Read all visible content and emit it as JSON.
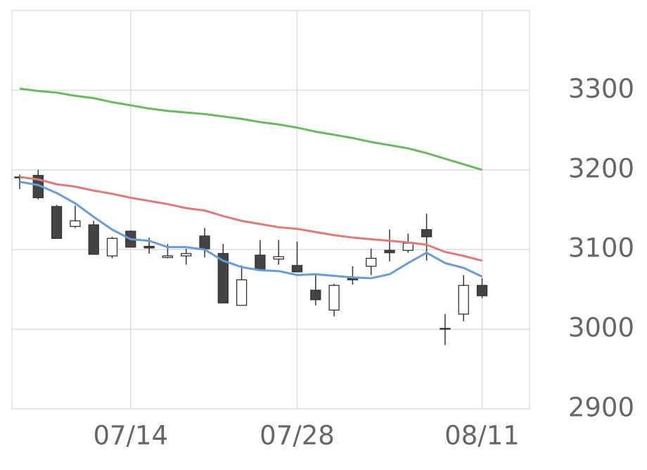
{
  "chart_data": {
    "type": "candlestick",
    "categories": [
      null,
      null,
      null,
      null,
      null,
      null,
      "07/14",
      null,
      null,
      null,
      null,
      null,
      null,
      null,
      null,
      "07/28",
      null,
      null,
      null,
      null,
      null,
      null,
      null,
      null,
      null,
      "08/11"
    ],
    "open": [
      3190,
      3193,
      3154,
      3129,
      3131,
      3092,
      3123,
      3104,
      3090,
      3092,
      3117,
      3095,
      3030,
      3093,
      3088,
      3080,
      3049,
      3024,
      3064,
      3079,
      3099,
      3099,
      3125,
      3000,
      3019,
      3055
    ],
    "high": [
      3194,
      3200,
      3156,
      3155,
      3136,
      3116,
      3124,
      3115,
      3107,
      3101,
      3127,
      3107,
      3080,
      3112,
      3112,
      3110,
      3070,
      3057,
      3079,
      3101,
      3125,
      3120,
      3145,
      3019,
      3068,
      3064
    ],
    "low": [
      3176,
      3163,
      3114,
      3127,
      3094,
      3089,
      3103,
      3095,
      3089,
      3081,
      3090,
      3033,
      3030,
      3075,
      3081,
      3072,
      3030,
      3016,
      3056,
      3068,
      3085,
      3096,
      3086,
      2980,
      3010,
      3039
    ],
    "close": [
      3191,
      3165,
      3114,
      3136,
      3094,
      3114,
      3103,
      3102,
      3092,
      3095,
      3101,
      3033,
      3062,
      3075,
      3091,
      3072,
      3037,
      3055,
      3062,
      3089,
      3096,
      3108,
      3116,
      3001,
      3055,
      3042
    ],
    "up_color": "#ffffff",
    "down_color": "#444444",
    "lines": [
      {
        "color": "#6a9bd8",
        "values": [
          3185,
          3181,
          3171,
          3158,
          3141,
          3125,
          3113,
          3111,
          3103,
          3103,
          3100,
          3086,
          3078,
          3074,
          3073,
          3068,
          3069,
          3067,
          3065,
          3064,
          3069,
          3083,
          3096,
          3083,
          3077,
          3066
        ]
      },
      {
        "color": "#e07a7a",
        "values": [
          3191,
          3188,
          3182,
          3179,
          3174,
          3170,
          3165,
          3161,
          3157,
          3152,
          3149,
          3142,
          3136,
          3132,
          3128,
          3126,
          3122,
          3118,
          3115,
          3113,
          3111,
          3109,
          3106,
          3097,
          3092,
          3086
        ]
      },
      {
        "color": "#6cb862",
        "values": [
          3302,
          3299,
          3297,
          3293,
          3290,
          3285,
          3281,
          3277,
          3274,
          3272,
          3270,
          3267,
          3264,
          3260,
          3257,
          3253,
          3248,
          3244,
          3240,
          3235,
          3231,
          3227,
          3221,
          3214,
          3207,
          3200
        ]
      }
    ],
    "ylim": [
      2900,
      3400
    ],
    "yticks": [
      2900,
      3000,
      3100,
      3200,
      3300
    ],
    "grid": true
  }
}
